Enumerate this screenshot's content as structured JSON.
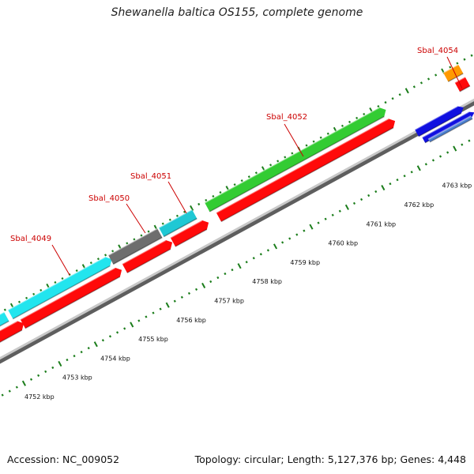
{
  "title": "Shewanella baltica OS155, complete genome",
  "accession": "Accession: NC_009052",
  "summary": "Topology: circular; Length: 5,127,376 bp; Genes: 4,448",
  "colors": {
    "cyan": "#22e5ee",
    "gray": "#6e6e6e",
    "teal": "#1fc8d4",
    "green": "#33cc33",
    "orange": "#ff9a00",
    "blue": "#1010e0",
    "steelblue": "#4a7fd0",
    "red": "#ff0a0a",
    "backbone": "#8a8a8a",
    "tick": "#1b7d1b",
    "gene_label": "#cc0000"
  },
  "genes": [
    {
      "label": "Sbal_4049",
      "color": "cyan"
    },
    {
      "label": "Sbal_4050",
      "color": "gray"
    },
    {
      "label": "Sbal_4051",
      "color": "teal"
    },
    {
      "label": "Sbal_4052",
      "color": "green"
    },
    {
      "label": "Sbal_4054",
      "color": "orange"
    }
  ],
  "scale_labels": [
    "4752 kbp",
    "4753 kbp",
    "4754 kbp",
    "4755 kbp",
    "4756 kbp",
    "4757 kbp",
    "4758 kbp",
    "4759 kbp",
    "4760 kbp",
    "4761 kbp",
    "4762 kbp",
    "4763 kbp"
  ]
}
